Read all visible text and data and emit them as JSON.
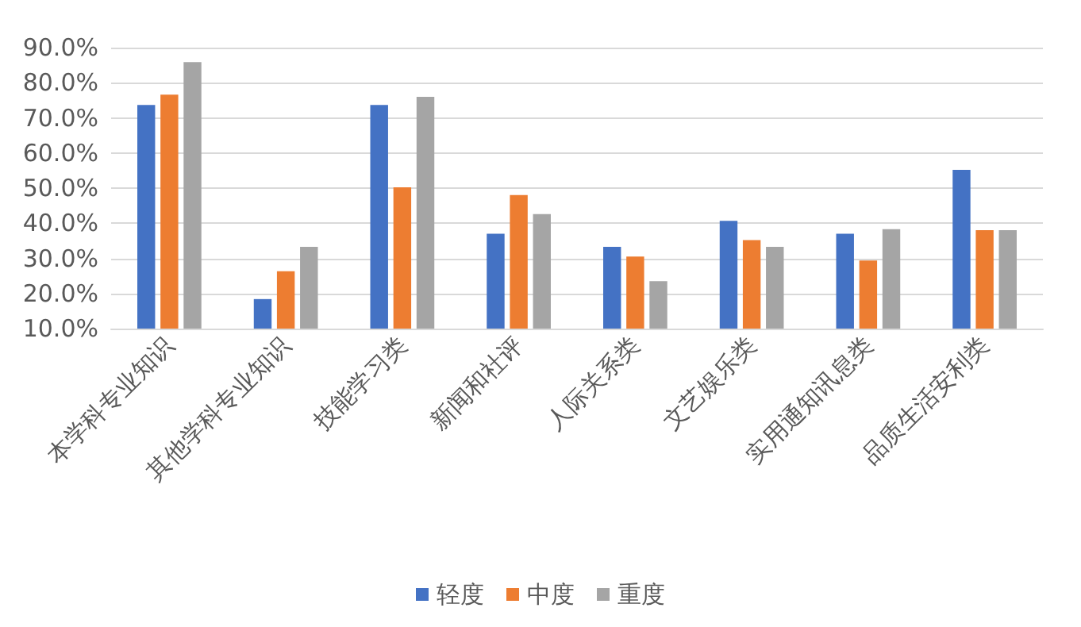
{
  "chart_data": {
    "type": "bar",
    "categories": [
      "本学科专业知识",
      "其他学科专业知识",
      "技能学习类",
      "新闻和社评",
      "人际关系类",
      "文艺娱乐类",
      "实用通知讯息类",
      "品质生活安利类"
    ],
    "series": [
      {
        "name": "轻度",
        "color": "#4472c4",
        "values": [
          73.7,
          18.4,
          73.7,
          37,
          33.3,
          40.7,
          37,
          55.2
        ]
      },
      {
        "name": "中度",
        "color": "#ed7d31",
        "values": [
          76.6,
          26.3,
          50.2,
          48,
          30.5,
          35.2,
          29.4,
          38
        ]
      },
      {
        "name": "重度",
        "color": "#a5a5a5",
        "values": [
          85.9,
          33.3,
          76,
          42.6,
          23.5,
          33.3,
          38.3,
          38
        ]
      }
    ],
    "ylim": [
      10,
      90
    ],
    "yticks": [
      {
        "value": 10,
        "label": "10.0%"
      },
      {
        "value": 20,
        "label": "20.0%"
      },
      {
        "value": 30,
        "label": "30.0%"
      },
      {
        "value": 40,
        "label": "40.0%"
      },
      {
        "value": 50,
        "label": "50.0%"
      },
      {
        "value": 60,
        "label": "60.0%"
      },
      {
        "value": 70,
        "label": "70.0%"
      },
      {
        "value": 80,
        "label": "80.0%"
      },
      {
        "value": 90,
        "label": "90.0%"
      }
    ],
    "grid": "y",
    "legend": "bottom"
  }
}
